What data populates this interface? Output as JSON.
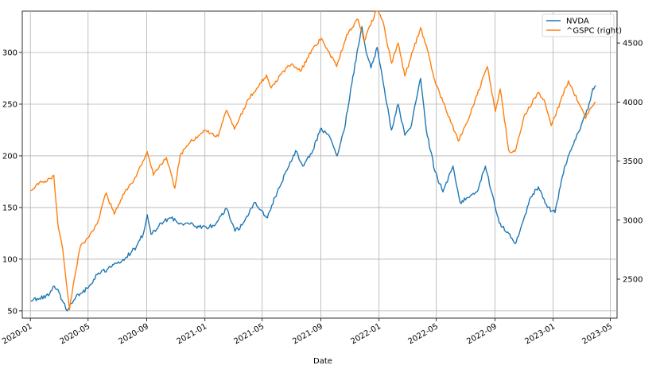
{
  "chart_data": {
    "type": "line",
    "xlabel": "Date",
    "ylabel_left": "",
    "ylabel_right": "",
    "grid": true,
    "legend_placement": "top-right",
    "x_ticks": [
      "2020-01",
      "2020-05",
      "2020-09",
      "2021-01",
      "2021-05",
      "2021-09",
      "2022-01",
      "2022-05",
      "2022-09",
      "2023-01",
      "2023-05"
    ],
    "y_left_ticks": [
      50,
      100,
      150,
      200,
      250,
      300
    ],
    "y_right_ticks": [
      2500,
      3000,
      3500,
      4000,
      4500
    ],
    "x_range": [
      "2019-12-15",
      "2023-05-15"
    ],
    "y_left_range": [
      43,
      340
    ],
    "y_right_range": [
      2170,
      4770
    ],
    "series": [
      {
        "name": "NVDA",
        "axis": "left",
        "color": "#1f77b4",
        "points": [
          [
            "2020-01-02",
            60
          ],
          [
            "2020-01-20",
            62
          ],
          [
            "2020-02-10",
            66
          ],
          [
            "2020-02-20",
            74
          ],
          [
            "2020-03-01",
            68
          ],
          [
            "2020-03-10",
            58
          ],
          [
            "2020-03-18",
            50
          ],
          [
            "2020-03-25",
            57
          ],
          [
            "2020-04-10",
            66
          ],
          [
            "2020-05-01",
            72
          ],
          [
            "2020-05-20",
            85
          ],
          [
            "2020-06-10",
            90
          ],
          [
            "2020-07-01",
            96
          ],
          [
            "2020-07-20",
            102
          ],
          [
            "2020-08-10",
            112
          ],
          [
            "2020-08-25",
            125
          ],
          [
            "2020-09-02",
            143
          ],
          [
            "2020-09-10",
            124
          ],
          [
            "2020-10-01",
            135
          ],
          [
            "2020-10-20",
            140
          ],
          [
            "2020-11-10",
            135
          ],
          [
            "2020-12-01",
            134
          ],
          [
            "2020-12-20",
            131
          ],
          [
            "2021-01-10",
            131
          ],
          [
            "2021-01-25",
            135
          ],
          [
            "2021-02-15",
            149
          ],
          [
            "2021-03-05",
            127
          ],
          [
            "2021-03-20",
            133
          ],
          [
            "2021-04-15",
            155
          ],
          [
            "2021-05-12",
            140
          ],
          [
            "2021-05-28",
            160
          ],
          [
            "2021-06-20",
            185
          ],
          [
            "2021-07-10",
            205
          ],
          [
            "2021-07-25",
            190
          ],
          [
            "2021-08-15",
            205
          ],
          [
            "2021-08-31",
            226
          ],
          [
            "2021-09-20",
            218
          ],
          [
            "2021-10-05",
            200
          ],
          [
            "2021-10-20",
            225
          ],
          [
            "2021-11-05",
            270
          ],
          [
            "2021-11-18",
            305
          ],
          [
            "2021-11-26",
            325
          ],
          [
            "2021-12-05",
            300
          ],
          [
            "2021-12-15",
            285
          ],
          [
            "2021-12-28",
            305
          ],
          [
            "2022-01-10",
            270
          ],
          [
            "2022-01-27",
            225
          ],
          [
            "2022-02-10",
            250
          ],
          [
            "2022-02-24",
            220
          ],
          [
            "2022-03-10",
            230
          ],
          [
            "2022-03-29",
            275
          ],
          [
            "2022-04-10",
            225
          ],
          [
            "2022-04-28",
            185
          ],
          [
            "2022-05-15",
            165
          ],
          [
            "2022-06-05",
            190
          ],
          [
            "2022-06-20",
            155
          ],
          [
            "2022-07-10",
            160
          ],
          [
            "2022-07-25",
            165
          ],
          [
            "2022-08-12",
            190
          ],
          [
            "2022-08-25",
            165
          ],
          [
            "2022-09-10",
            135
          ],
          [
            "2022-09-30",
            125
          ],
          [
            "2022-10-13",
            115
          ],
          [
            "2022-10-25",
            130
          ],
          [
            "2022-11-15",
            160
          ],
          [
            "2022-12-01",
            170
          ],
          [
            "2022-12-20",
            150
          ],
          [
            "2023-01-05",
            145
          ],
          [
            "2023-01-25",
            190
          ],
          [
            "2023-02-15",
            215
          ],
          [
            "2023-03-01",
            230
          ],
          [
            "2023-03-15",
            245
          ],
          [
            "2023-03-25",
            265
          ],
          [
            "2023-03-31",
            268
          ]
        ]
      },
      {
        "name": "^GSPC (right)",
        "axis": "right",
        "color": "#ff7f0e",
        "points": [
          [
            "2020-01-02",
            3250
          ],
          [
            "2020-01-20",
            3320
          ],
          [
            "2020-02-05",
            3330
          ],
          [
            "2020-02-19",
            3380
          ],
          [
            "2020-02-28",
            2950
          ],
          [
            "2020-03-09",
            2750
          ],
          [
            "2020-03-23",
            2240
          ],
          [
            "2020-04-01",
            2480
          ],
          [
            "2020-04-15",
            2780
          ],
          [
            "2020-05-01",
            2850
          ],
          [
            "2020-05-20",
            2970
          ],
          [
            "2020-06-08",
            3230
          ],
          [
            "2020-06-25",
            3050
          ],
          [
            "2020-07-15",
            3220
          ],
          [
            "2020-08-10",
            3370
          ],
          [
            "2020-09-02",
            3580
          ],
          [
            "2020-09-15",
            3380
          ],
          [
            "2020-10-12",
            3530
          ],
          [
            "2020-10-30",
            3270
          ],
          [
            "2020-11-10",
            3550
          ],
          [
            "2020-12-01",
            3660
          ],
          [
            "2021-01-01",
            3760
          ],
          [
            "2021-01-29",
            3710
          ],
          [
            "2021-02-15",
            3930
          ],
          [
            "2021-03-04",
            3770
          ],
          [
            "2021-04-01",
            4020
          ],
          [
            "2021-05-10",
            4230
          ],
          [
            "2021-05-20",
            4120
          ],
          [
            "2021-06-10",
            4240
          ],
          [
            "2021-07-01",
            4320
          ],
          [
            "2021-07-20",
            4260
          ],
          [
            "2021-08-15",
            4450
          ],
          [
            "2021-09-02",
            4540
          ],
          [
            "2021-10-04",
            4300
          ],
          [
            "2021-10-25",
            4570
          ],
          [
            "2021-11-18",
            4700
          ],
          [
            "2021-12-01",
            4520
          ],
          [
            "2021-12-28",
            4790
          ],
          [
            "2022-01-10",
            4670
          ],
          [
            "2022-01-27",
            4330
          ],
          [
            "2022-02-10",
            4500
          ],
          [
            "2022-02-24",
            4220
          ],
          [
            "2022-03-29",
            4630
          ],
          [
            "2022-04-10",
            4480
          ],
          [
            "2022-04-28",
            4180
          ],
          [
            "2022-05-15",
            4000
          ],
          [
            "2022-06-16",
            3670
          ],
          [
            "2022-07-05",
            3830
          ],
          [
            "2022-08-16",
            4300
          ],
          [
            "2022-09-02",
            3920
          ],
          [
            "2022-09-12",
            4110
          ],
          [
            "2022-09-30",
            3590
          ],
          [
            "2022-10-13",
            3580
          ],
          [
            "2022-11-01",
            3880
          ],
          [
            "2022-11-30",
            4080
          ],
          [
            "2022-12-13",
            4020
          ],
          [
            "2022-12-28",
            3800
          ],
          [
            "2023-01-15",
            3990
          ],
          [
            "2023-02-02",
            4180
          ],
          [
            "2023-03-01",
            3950
          ],
          [
            "2023-03-10",
            3860
          ],
          [
            "2023-03-20",
            3950
          ],
          [
            "2023-03-31",
            4000
          ]
        ]
      }
    ]
  }
}
